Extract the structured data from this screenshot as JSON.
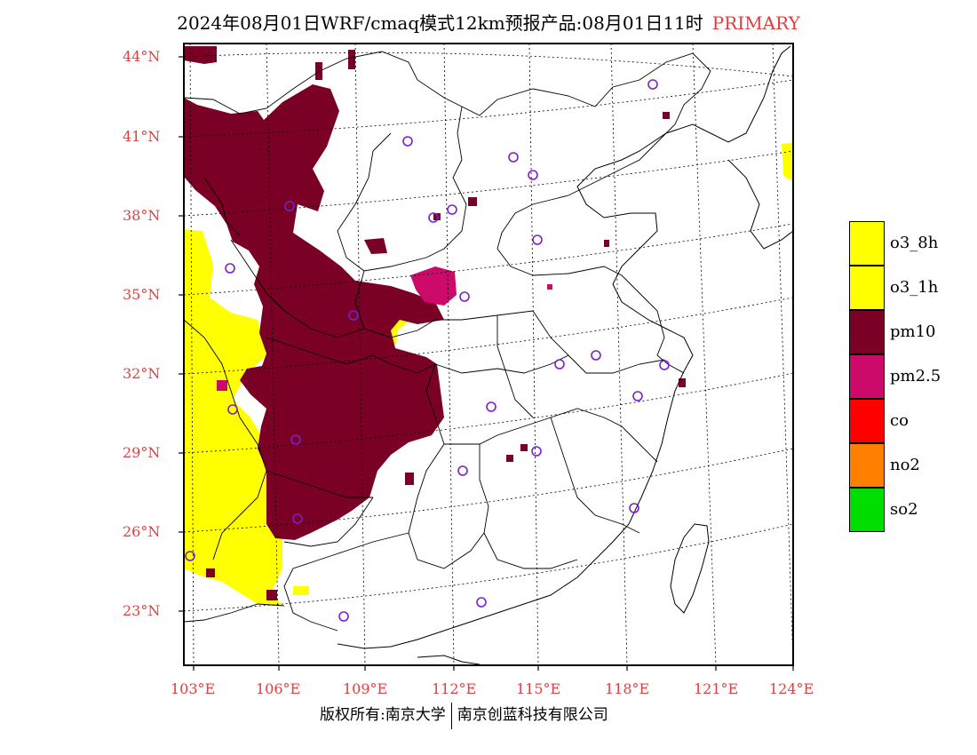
{
  "title": {
    "main": "2024年08月01日WRF/cmaq模式12km预报产品:08月01日11时",
    "tag": "PRIMARY",
    "tag_color": "#e33b3b"
  },
  "map": {
    "lat_labels": [
      "44°N",
      "41°N",
      "38°N",
      "35°N",
      "32°N",
      "29°N",
      "26°N",
      "23°N"
    ],
    "lon_labels": [
      "103°E",
      "106°E",
      "109°E",
      "112°E",
      "115°E",
      "118°E",
      "121°E",
      "124°E"
    ],
    "extent": {
      "lon_min": 102.7,
      "lon_max": 124,
      "lat_min": 21,
      "lat_max": 44.5
    },
    "label_color": "#e04040"
  },
  "legend": [
    {
      "label": "o3_8h",
      "color": "#ffff00"
    },
    {
      "label": "o3_1h",
      "color": "#ffff00"
    },
    {
      "label": "pm10",
      "color": "#7a0026"
    },
    {
      "label": "pm2.5",
      "color": "#cc0a6a"
    },
    {
      "label": "co",
      "color": "#ff0000"
    },
    {
      "label": "no2",
      "color": "#ff7f00"
    },
    {
      "label": "so2",
      "color": "#00dd00"
    }
  ],
  "footer": {
    "left": "版权所有:南京大学",
    "right": "南京创蓝科技有限公司"
  }
}
